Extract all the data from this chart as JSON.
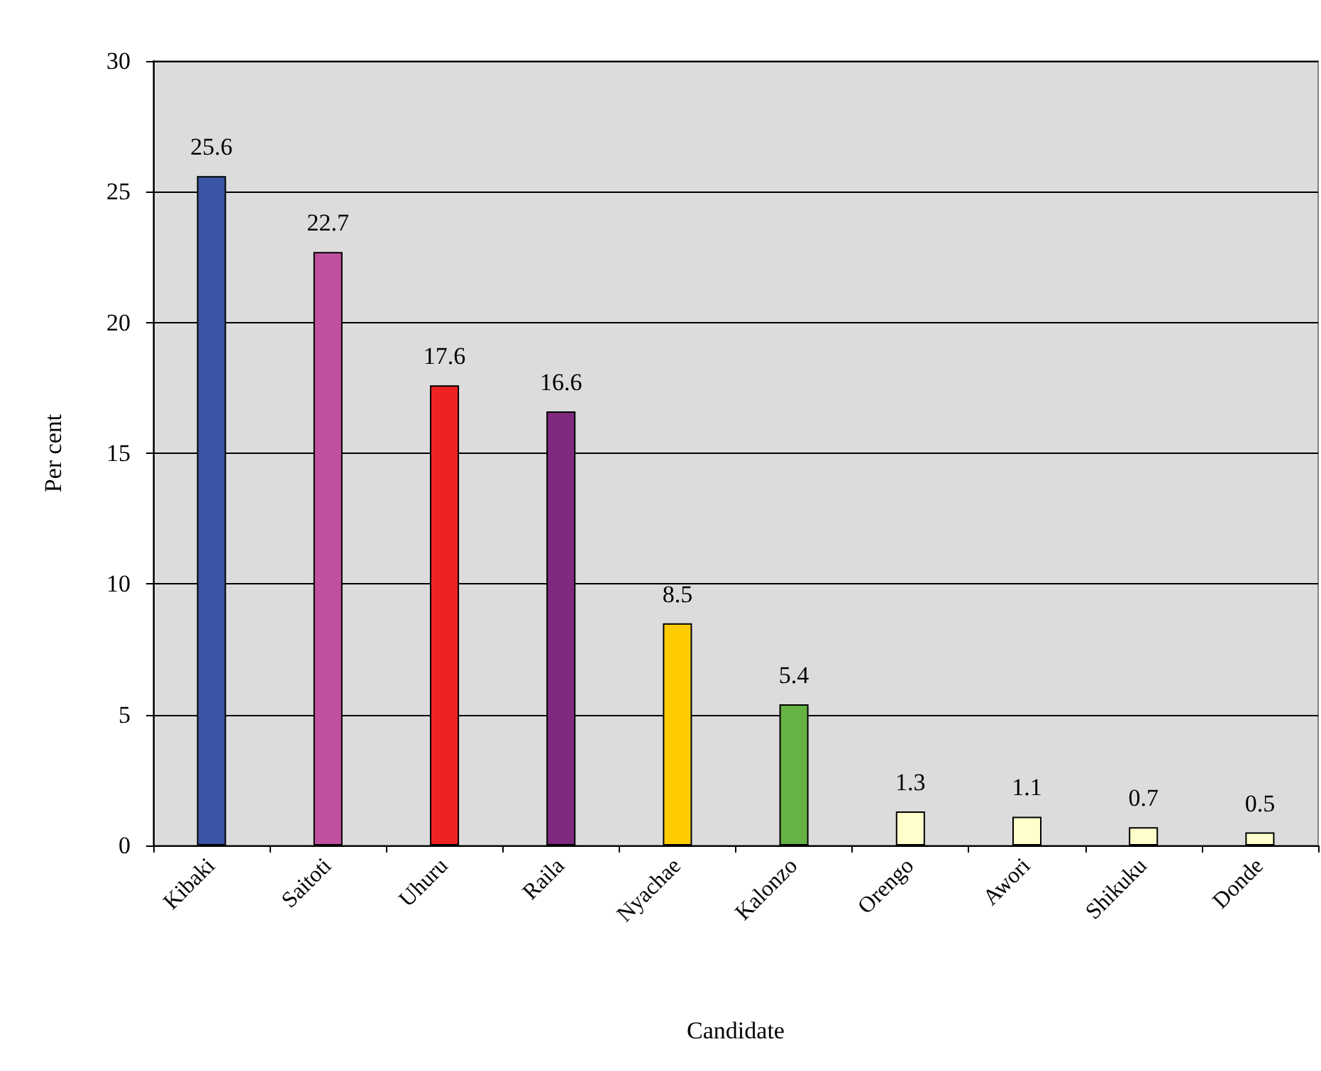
{
  "chart_data": {
    "type": "bar",
    "xlabel": "Candidate",
    "ylabel": "Per cent",
    "categories": [
      "Kibaki",
      "Saitoti",
      "Uhuru",
      "Raila",
      "Nyachae",
      "Kalonzo",
      "Orengo",
      "Awori",
      "Shikuku",
      "Donde"
    ],
    "values": [
      25.6,
      22.7,
      17.6,
      16.6,
      8.5,
      5.4,
      1.3,
      1.1,
      0.7,
      0.5
    ],
    "colors": [
      "#3a55a4",
      "#c050a0",
      "#ee2222",
      "#7f2a7f",
      "#ffcc00",
      "#66b245",
      "#ffffcc",
      "#ffffcc",
      "#ffffcc",
      "#ffffcc"
    ],
    "ylim": [
      0,
      30
    ],
    "yticks": [
      0,
      5,
      10,
      15,
      20,
      25,
      30
    ],
    "grid": "y",
    "data_labels": true
  }
}
